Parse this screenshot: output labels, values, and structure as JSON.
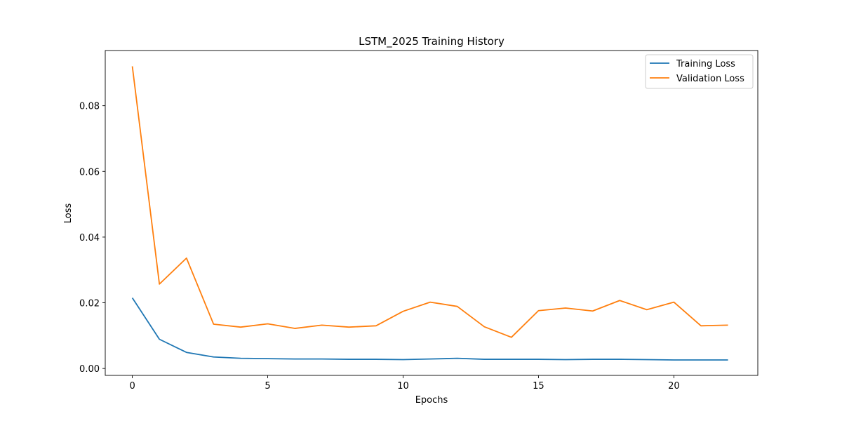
{
  "chart_data": {
    "type": "line",
    "title": "LSTM_2025 Training History",
    "xlabel": "Epochs",
    "ylabel": "Loss",
    "xlim": [
      -1,
      23.1
    ],
    "ylim": [
      -0.0021,
      0.0968
    ],
    "xticks": [
      0,
      5,
      10,
      15,
      20
    ],
    "xtick_labels": [
      "0",
      "5",
      "10",
      "15",
      "20"
    ],
    "yticks": [
      0.0,
      0.02,
      0.04,
      0.06,
      0.08
    ],
    "ytick_labels": [
      "0.00",
      "0.02",
      "0.04",
      "0.06",
      "0.08"
    ],
    "grid": false,
    "legend": "top-right",
    "x": [
      0,
      1,
      2,
      3,
      4,
      5,
      6,
      7,
      8,
      9,
      10,
      11,
      12,
      13,
      14,
      15,
      16,
      17,
      18,
      19,
      20,
      21,
      22
    ],
    "series": [
      {
        "name": "Training Loss",
        "color": "#1f77b4",
        "values": [
          0.0215,
          0.0089,
          0.0049,
          0.0035,
          0.0031,
          0.003,
          0.0029,
          0.0029,
          0.0028,
          0.0028,
          0.0027,
          0.0029,
          0.0031,
          0.0028,
          0.0028,
          0.0028,
          0.0027,
          0.0028,
          0.0028,
          0.0027,
          0.0026,
          0.0026,
          0.0026
        ]
      },
      {
        "name": "Validation Loss",
        "color": "#ff7f0e",
        "values": [
          0.092,
          0.0257,
          0.0336,
          0.0135,
          0.0126,
          0.0136,
          0.0122,
          0.0132,
          0.0126,
          0.013,
          0.0174,
          0.0202,
          0.0189,
          0.0127,
          0.0095,
          0.0176,
          0.0184,
          0.0175,
          0.0207,
          0.0179,
          0.0202,
          0.013,
          0.0132
        ]
      }
    ]
  }
}
